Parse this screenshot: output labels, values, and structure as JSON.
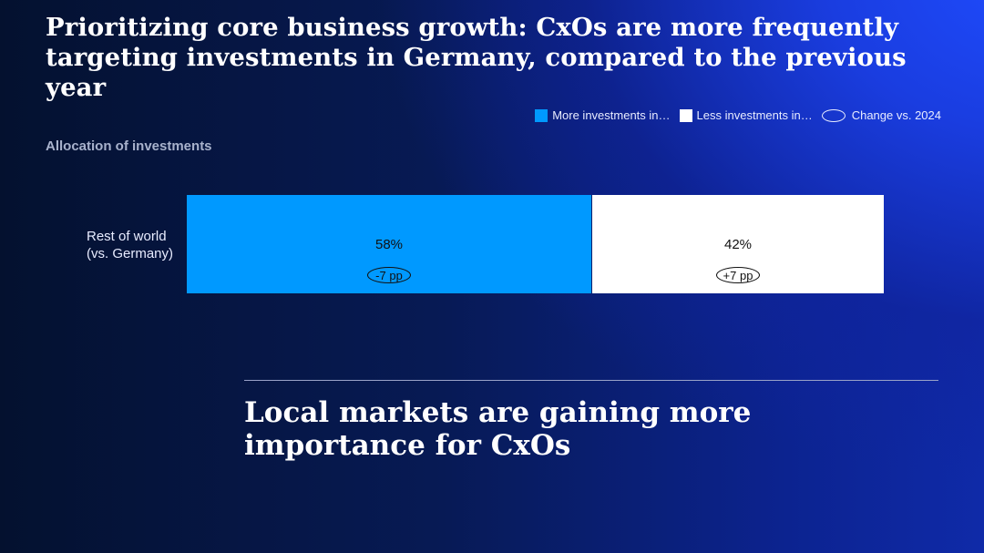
{
  "title": "Prioritizing core business growth: CxOs are more frequently targeting investments in Germany, compared to the previous year",
  "legend": {
    "more": "More investments in…",
    "less": "Less investments in…",
    "change": "Change vs. 2024"
  },
  "colors": {
    "more": "#0099ff",
    "less": "#ffffff",
    "background_dark": "#04112f",
    "background_bright": "#1f4cff"
  },
  "chart_data": {
    "type": "bar",
    "orientation": "horizontal",
    "stacked": true,
    "title": "Allocation of investments",
    "categories": [
      "Rest of world (vs. Germany)"
    ],
    "category_lines": [
      "Rest of world",
      "(vs. Germany)"
    ],
    "series": [
      {
        "name": "More investments in…",
        "values": [
          58
        ],
        "label": "58%",
        "change": "-7 pp",
        "color": "#0099ff"
      },
      {
        "name": "Less investments in…",
        "values": [
          42
        ],
        "label": "42%",
        "change": "+7 pp",
        "color": "#ffffff"
      }
    ],
    "xlim": [
      0,
      100
    ],
    "unit": "%",
    "legend_position": "top-right",
    "grid": false
  },
  "takeaway": "Local markets are gaining more importance for CxOs"
}
